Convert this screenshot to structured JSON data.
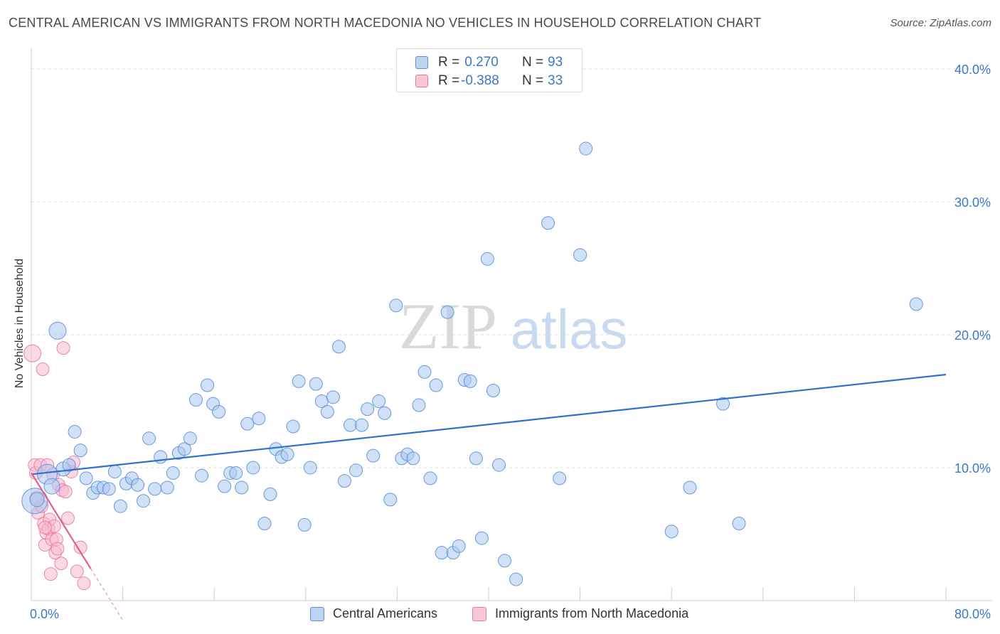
{
  "title": "CENTRAL AMERICAN VS IMMIGRANTS FROM NORTH MACEDONIA NO VEHICLES IN HOUSEHOLD CORRELATION CHART",
  "source": "Source: ZipAtlas.com",
  "watermark": {
    "zip": "ZIP",
    "atlas": "atlas"
  },
  "colors": {
    "blue": "#5b8fd6",
    "blue_fill": "#a9c6ee",
    "blue_line": "#2f6fcf",
    "pink": "#e87aa0",
    "pink_fill": "#f6b9cf",
    "pink_line": "#e0608e",
    "axis_text": "#3a78c8",
    "grid": "#dddddd"
  },
  "legend_top": [
    {
      "r_label": "R =",
      "r_value": " 0.270",
      "n_label": "N =",
      "n_value": "93",
      "color": "blue"
    },
    {
      "r_label": "R =",
      "r_value": "-0.388",
      "n_label": "N =",
      "n_value": "33",
      "color": "pink"
    }
  ],
  "chart_data": {
    "type": "scatter",
    "ylabel": "No Vehicles in Household",
    "xlim": [
      0,
      80
    ],
    "ylim": [
      0,
      40
    ],
    "x_tick_labels": [
      "0.0%",
      "80.0%"
    ],
    "y_ticks": [
      10,
      20,
      30,
      40
    ],
    "y_tick_labels": [
      "10.0%",
      "20.0%",
      "30.0%",
      "40.0%"
    ],
    "grid": "horizontal dashed",
    "series": [
      {
        "name": "Central Americans",
        "color": "blue",
        "trend": {
          "x": [
            0,
            80
          ],
          "y": [
            9.5,
            17.0
          ]
        },
        "points": [
          [
            0.3,
            7.5,
            18
          ],
          [
            1.4,
            9.5,
            14
          ],
          [
            1.8,
            8.6,
            11
          ],
          [
            2.3,
            20.3,
            12
          ],
          [
            2.8,
            9.9,
            10
          ],
          [
            3.3,
            10.2,
            9
          ],
          [
            3.8,
            12.7,
            9
          ],
          [
            4.3,
            11.3,
            9
          ],
          [
            4.8,
            9.2,
            9
          ],
          [
            5.4,
            8.1,
            9
          ],
          [
            5.8,
            8.5,
            9
          ],
          [
            6.3,
            8.5,
            9
          ],
          [
            6.8,
            8.4,
            9
          ],
          [
            7.3,
            9.7,
            9
          ],
          [
            7.8,
            7.1,
            9
          ],
          [
            8.3,
            8.8,
            9
          ],
          [
            8.8,
            9.2,
            9
          ],
          [
            9.3,
            8.7,
            9
          ],
          [
            9.8,
            7.5,
            9
          ],
          [
            10.3,
            12.2,
            9
          ],
          [
            10.8,
            8.4,
            9
          ],
          [
            11.3,
            10.8,
            9
          ],
          [
            11.9,
            8.5,
            9
          ],
          [
            12.4,
            9.6,
            9
          ],
          [
            12.9,
            11.1,
            9
          ],
          [
            13.4,
            11.4,
            9
          ],
          [
            13.9,
            12.2,
            9
          ],
          [
            14.4,
            15.1,
            9
          ],
          [
            14.9,
            9.4,
            9
          ],
          [
            15.4,
            16.2,
            9
          ],
          [
            15.9,
            14.8,
            9
          ],
          [
            16.4,
            14.2,
            9
          ],
          [
            16.9,
            8.6,
            9
          ],
          [
            17.4,
            9.6,
            9
          ],
          [
            17.9,
            9.6,
            9
          ],
          [
            18.4,
            8.5,
            9
          ],
          [
            18.9,
            13.3,
            9
          ],
          [
            19.4,
            10.0,
            9
          ],
          [
            19.9,
            13.7,
            9
          ],
          [
            20.4,
            5.8,
            9
          ],
          [
            20.9,
            8.0,
            9
          ],
          [
            21.4,
            11.4,
            9
          ],
          [
            21.9,
            10.8,
            9
          ],
          [
            22.4,
            11.0,
            9
          ],
          [
            22.9,
            13.1,
            9
          ],
          [
            23.4,
            16.5,
            9
          ],
          [
            23.9,
            5.7,
            9
          ],
          [
            24.4,
            10.0,
            9
          ],
          [
            24.9,
            16.3,
            9
          ],
          [
            25.4,
            15.0,
            9
          ],
          [
            25.9,
            14.2,
            9
          ],
          [
            26.4,
            15.3,
            9
          ],
          [
            26.9,
            19.1,
            9
          ],
          [
            27.4,
            9.0,
            9
          ],
          [
            27.9,
            13.2,
            9
          ],
          [
            28.4,
            9.8,
            9
          ],
          [
            28.9,
            13.2,
            9
          ],
          [
            29.4,
            14.4,
            9
          ],
          [
            29.9,
            10.9,
            9
          ],
          [
            30.4,
            15.0,
            9
          ],
          [
            30.9,
            14.1,
            9
          ],
          [
            31.4,
            7.6,
            9
          ],
          [
            31.9,
            22.2,
            9
          ],
          [
            32.4,
            10.7,
            9
          ],
          [
            32.9,
            11.0,
            9
          ],
          [
            33.4,
            10.7,
            9
          ],
          [
            33.9,
            14.7,
            9
          ],
          [
            34.4,
            17.2,
            9
          ],
          [
            34.9,
            9.2,
            9
          ],
          [
            35.4,
            16.2,
            9
          ],
          [
            35.9,
            3.6,
            9
          ],
          [
            36.4,
            21.7,
            9
          ],
          [
            36.9,
            3.6,
            9
          ],
          [
            37.4,
            4.1,
            9
          ],
          [
            37.9,
            16.6,
            9
          ],
          [
            38.4,
            16.5,
            9
          ],
          [
            38.9,
            10.7,
            9
          ],
          [
            39.4,
            4.7,
            9
          ],
          [
            39.9,
            25.7,
            9
          ],
          [
            40.4,
            15.8,
            9
          ],
          [
            40.9,
            10.2,
            9
          ],
          [
            41.4,
            3.0,
            9
          ],
          [
            42.4,
            1.6,
            9
          ],
          [
            45.2,
            28.4,
            9
          ],
          [
            46.2,
            9.2,
            9
          ],
          [
            48.0,
            26.0,
            9
          ],
          [
            48.5,
            34.0,
            9
          ],
          [
            56.0,
            5.2,
            9
          ],
          [
            57.6,
            8.5,
            9
          ],
          [
            60.5,
            14.8,
            9
          ],
          [
            61.9,
            5.8,
            9
          ],
          [
            77.4,
            22.3,
            9
          ],
          [
            0.5,
            7.6,
            10
          ]
        ]
      },
      {
        "name": "Immigrants from North Macedonia",
        "color": "pink",
        "trend": {
          "x": [
            0,
            5.2
          ],
          "y": [
            9.6,
            2.4
          ],
          "dash_x": [
            5.2,
            8.1
          ]
        },
        "points": [
          [
            0.1,
            18.6,
            12
          ],
          [
            0.3,
            10.2,
            9
          ],
          [
            0.4,
            9.6,
            9
          ],
          [
            0.5,
            7.7,
            10
          ],
          [
            0.6,
            6.6,
            9
          ],
          [
            0.8,
            10.2,
            9
          ],
          [
            0.9,
            7.1,
            9
          ],
          [
            1.0,
            17.4,
            9
          ],
          [
            1.1,
            5.8,
            9
          ],
          [
            1.2,
            4.2,
            9
          ],
          [
            1.3,
            5.1,
            9
          ],
          [
            1.4,
            10.2,
            9
          ],
          [
            1.5,
            5.4,
            9
          ],
          [
            1.6,
            6.1,
            9
          ],
          [
            1.7,
            2.0,
            9
          ],
          [
            1.8,
            4.6,
            9
          ],
          [
            1.9,
            9.5,
            9
          ],
          [
            2.0,
            5.6,
            9
          ],
          [
            2.1,
            3.6,
            9
          ],
          [
            2.2,
            4.6,
            9
          ],
          [
            2.3,
            3.9,
            9
          ],
          [
            2.4,
            8.7,
            9
          ],
          [
            2.6,
            2.8,
            9
          ],
          [
            2.7,
            8.3,
            9
          ],
          [
            2.8,
            19.0,
            9
          ],
          [
            3.0,
            8.2,
            9
          ],
          [
            3.2,
            6.2,
            9
          ],
          [
            3.5,
            9.7,
            9
          ],
          [
            3.7,
            10.4,
            9
          ],
          [
            4.0,
            2.2,
            9
          ],
          [
            4.3,
            4.0,
            9
          ],
          [
            4.6,
            1.3,
            9
          ],
          [
            1.2,
            5.5,
            9
          ]
        ]
      }
    ]
  },
  "legend_bottom": [
    {
      "label": "Central Americans",
      "color": "blue"
    },
    {
      "label": "Immigrants from North Macedonia",
      "color": "pink"
    }
  ]
}
